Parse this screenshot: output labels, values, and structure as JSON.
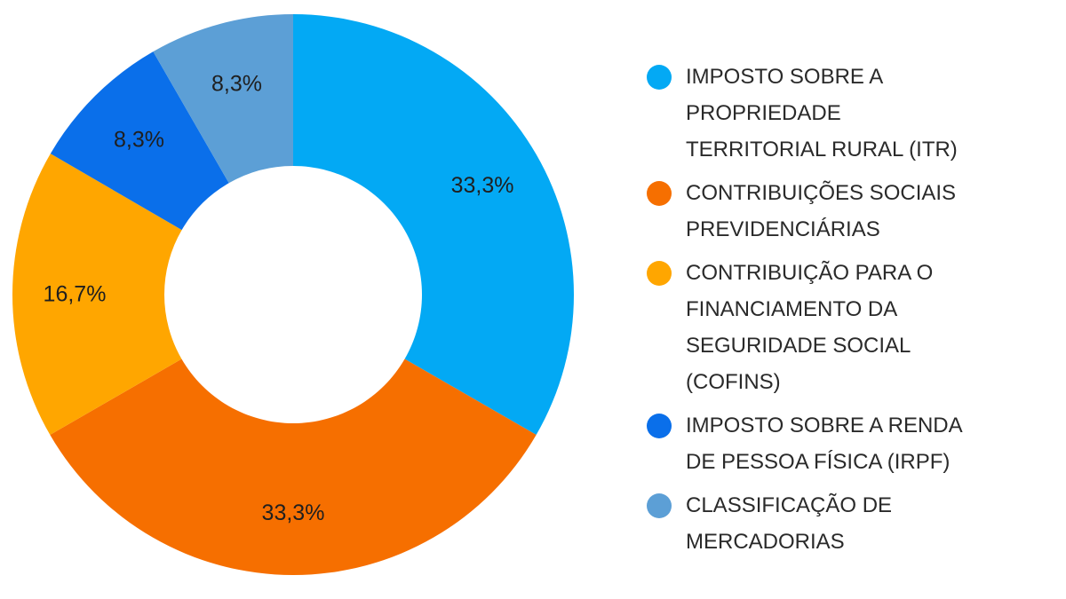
{
  "chart_data": {
    "type": "pie",
    "donut": true,
    "legend_position": "right",
    "slices": [
      {
        "label": "IMPOSTO SOBRE A\nPROPRIEDADE\nTERRITORIAL RURAL (ITR)",
        "value": 33.3,
        "value_label": "33,3%",
        "color": "#03a9f4"
      },
      {
        "label": "CONTRIBUIÇÕES SOCIAIS\nPREVIDENCIÁRIAS",
        "value": 33.3,
        "value_label": "33,3%",
        "color": "#f66f00"
      },
      {
        "label": "CONTRIBUIÇÃO PARA O\nFINANCIAMENTO DA\nSEGURIDADE SOCIAL\n(COFINS)",
        "value": 16.7,
        "value_label": "16,7%",
        "color": "#ffa600"
      },
      {
        "label": "IMPOSTO SOBRE A RENDA\nDE PESSOA FÍSICA (IRPF)",
        "value": 8.3,
        "value_label": "8,3%",
        "color": "#0a6fea"
      },
      {
        "label": "CLASSIFICAÇÃO DE\nMERCADORIAS",
        "value": 8.3,
        "value_label": "8,3%",
        "color": "#5c9fd6"
      }
    ]
  }
}
